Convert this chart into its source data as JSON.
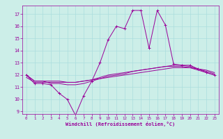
{
  "xlabel": "Windchill (Refroidissement éolien,°C)",
  "bg_color": "#cceee8",
  "line_color": "#990099",
  "grid_color": "#aadddd",
  "xlim": [
    -0.5,
    23.5
  ],
  "ylim": [
    8.8,
    17.7
  ],
  "yticks": [
    9,
    10,
    11,
    12,
    13,
    14,
    15,
    16,
    17
  ],
  "xticks": [
    0,
    1,
    2,
    3,
    4,
    5,
    6,
    7,
    8,
    9,
    10,
    11,
    12,
    13,
    14,
    15,
    16,
    17,
    18,
    19,
    20,
    21,
    22,
    23
  ],
  "series": [
    {
      "x": [
        0,
        1,
        2,
        3,
        4,
        5,
        6,
        7,
        8,
        9,
        10,
        11,
        12,
        13,
        14,
        15,
        16,
        17,
        18,
        19,
        20,
        21,
        22,
        23
      ],
      "y": [
        12.0,
        11.3,
        11.3,
        11.2,
        10.5,
        10.0,
        8.7,
        10.3,
        11.5,
        13.0,
        14.9,
        16.0,
        15.8,
        17.3,
        17.3,
        14.2,
        17.3,
        16.1,
        12.9,
        12.8,
        12.8,
        12.5,
        12.2,
        12.0
      ],
      "marker": "+"
    },
    {
      "x": [
        0,
        1,
        2,
        3,
        4,
        5,
        6,
        7,
        8,
        9,
        10,
        11,
        12,
        13,
        14,
        15,
        16,
        17,
        18,
        19,
        20,
        21,
        22,
        23
      ],
      "y": [
        11.8,
        11.4,
        11.4,
        11.4,
        11.4,
        11.4,
        11.4,
        11.5,
        11.6,
        11.7,
        11.8,
        11.9,
        12.0,
        12.1,
        12.2,
        12.3,
        12.4,
        12.5,
        12.6,
        12.6,
        12.6,
        12.5,
        12.4,
        12.2
      ],
      "marker": null
    },
    {
      "x": [
        0,
        1,
        2,
        3,
        4,
        5,
        6,
        7,
        8,
        9,
        10,
        11,
        12,
        13,
        14,
        15,
        16,
        17,
        18,
        19,
        20,
        21,
        22,
        23
      ],
      "y": [
        12.0,
        11.5,
        11.5,
        11.5,
        11.5,
        11.4,
        11.4,
        11.5,
        11.6,
        11.8,
        12.0,
        12.1,
        12.2,
        12.3,
        12.4,
        12.5,
        12.6,
        12.7,
        12.8,
        12.8,
        12.7,
        12.5,
        12.3,
        12.1
      ],
      "marker": null
    },
    {
      "x": [
        0,
        1,
        2,
        3,
        4,
        5,
        6,
        7,
        8,
        9,
        10,
        11,
        12,
        13,
        14,
        15,
        16,
        17,
        18,
        19,
        20,
        21,
        22,
        23
      ],
      "y": [
        12.0,
        11.5,
        11.5,
        11.3,
        11.3,
        11.2,
        11.2,
        11.3,
        11.5,
        11.7,
        11.9,
        12.0,
        12.1,
        12.3,
        12.4,
        12.5,
        12.6,
        12.7,
        12.7,
        12.7,
        12.6,
        12.4,
        12.2,
        12.0
      ],
      "marker": null
    }
  ]
}
